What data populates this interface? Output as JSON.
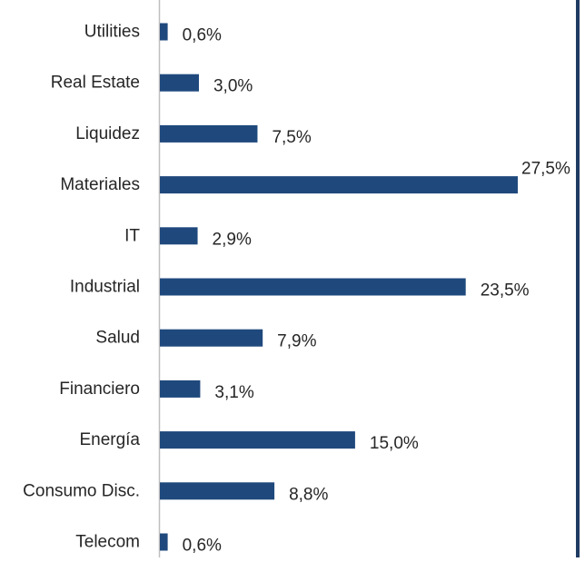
{
  "chart_data": {
    "type": "bar",
    "orientation": "horizontal",
    "categories": [
      "Utilities",
      "Real Estate",
      "Liquidez",
      "Materiales",
      "IT",
      "Industrial",
      "Salud",
      "Financiero",
      "Energía",
      "Consumo Disc.",
      "Telecom"
    ],
    "values": [
      0.6,
      3.0,
      7.5,
      27.5,
      2.9,
      23.5,
      7.9,
      3.1,
      15.0,
      8.8,
      0.6
    ],
    "data_labels": [
      "0,6%",
      "3,0%",
      "7,5%",
      "27,5%",
      "2,9%",
      "23,5%",
      "7,9%",
      "3,1%",
      "15,0%",
      "8,8%",
      "0,6%"
    ],
    "unit": "%",
    "xlim": [
      0,
      27.5
    ],
    "grid": false,
    "legend": "none",
    "title": "",
    "xlabel": "",
    "ylabel": ""
  },
  "colors": {
    "bar": "#1f497d",
    "axis": "#bfbfbf",
    "text": "#262626",
    "frame_edge": "#1f3b63"
  }
}
